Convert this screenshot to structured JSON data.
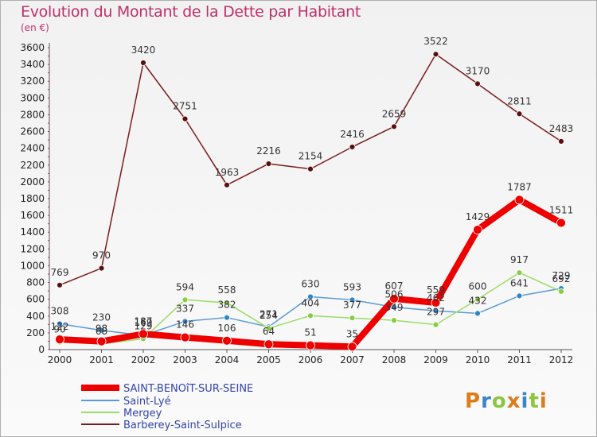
{
  "title": "Evolution du Montant de la Dette par Habitant",
  "subtitle": "(en €)",
  "brand": "Proxiti",
  "brand_colors": [
    "#e07b1a",
    "#3a86c8",
    "#8cc63f",
    "#e07b1a",
    "#3a86c8",
    "#8cc63f",
    "#e07b1a"
  ],
  "chart_data": {
    "type": "line",
    "x": [
      "2000",
      "2001",
      "2002",
      "2003",
      "2004",
      "2005",
      "2006",
      "2007",
      "2008",
      "2009",
      "2010",
      "2011",
      "2012"
    ],
    "y_ticks": [
      0,
      200,
      400,
      600,
      800,
      1000,
      1200,
      1400,
      1600,
      1800,
      2000,
      2200,
      2400,
      2600,
      2800,
      3000,
      3200,
      3400,
      3600
    ],
    "ylim": [
      0,
      3600
    ],
    "grid": false,
    "legend_position": "bottom-left",
    "series": [
      {
        "name": "SAINT-BENOîT-SUR-SEINE",
        "color": "#ee0000",
        "marker": "#ee0000",
        "width": 8,
        "values": [
          122,
          98,
          187,
          146,
          106,
          64,
          51,
          35,
          607,
          559,
          1429,
          1787,
          1511
        ],
        "labels": [
          "122",
          "98",
          "187",
          "146",
          "106",
          "64",
          "51",
          "35",
          "607",
          "559",
          "1429",
          "1787",
          "1511"
        ]
      },
      {
        "name": "Saint-Lyé",
        "color": "#5b9bd5",
        "marker": "#2f86c9",
        "width": 1.5,
        "values": [
          308,
          230,
          169,
          337,
          382,
          271,
          630,
          593,
          506,
          462,
          432,
          641,
          729
        ],
        "labels": [
          "308",
          "230",
          "169",
          "337",
          "382",
          "271",
          "630",
          "593",
          "506",
          "462",
          "432",
          "641",
          "729"
        ]
      },
      {
        "name": "Mergey",
        "color": "#99dd66",
        "marker": "#88cc44",
        "width": 1.5,
        "values": [
          90,
          68,
          129,
          594,
          558,
          254,
          404,
          377,
          349,
          297,
          600,
          917,
          692
        ],
        "labels": [
          "90",
          "68",
          "129",
          "594",
          "558",
          "254",
          "404",
          "377",
          "349",
          "297",
          "600",
          "917",
          "692"
        ]
      },
      {
        "name": "Barberey-Saint-Sulpice",
        "color": "#7b1c1c",
        "marker": "#5a1010",
        "width": 1.5,
        "values": [
          769,
          970,
          3420,
          2751,
          1963,
          2216,
          2154,
          2416,
          2659,
          3522,
          3170,
          2811,
          2483
        ],
        "labels": [
          "769",
          "970",
          "3420",
          "2751",
          "1963",
          "2216",
          "2154",
          "2416",
          "2659",
          "3522",
          "3170",
          "2811",
          "2483"
        ]
      }
    ]
  }
}
